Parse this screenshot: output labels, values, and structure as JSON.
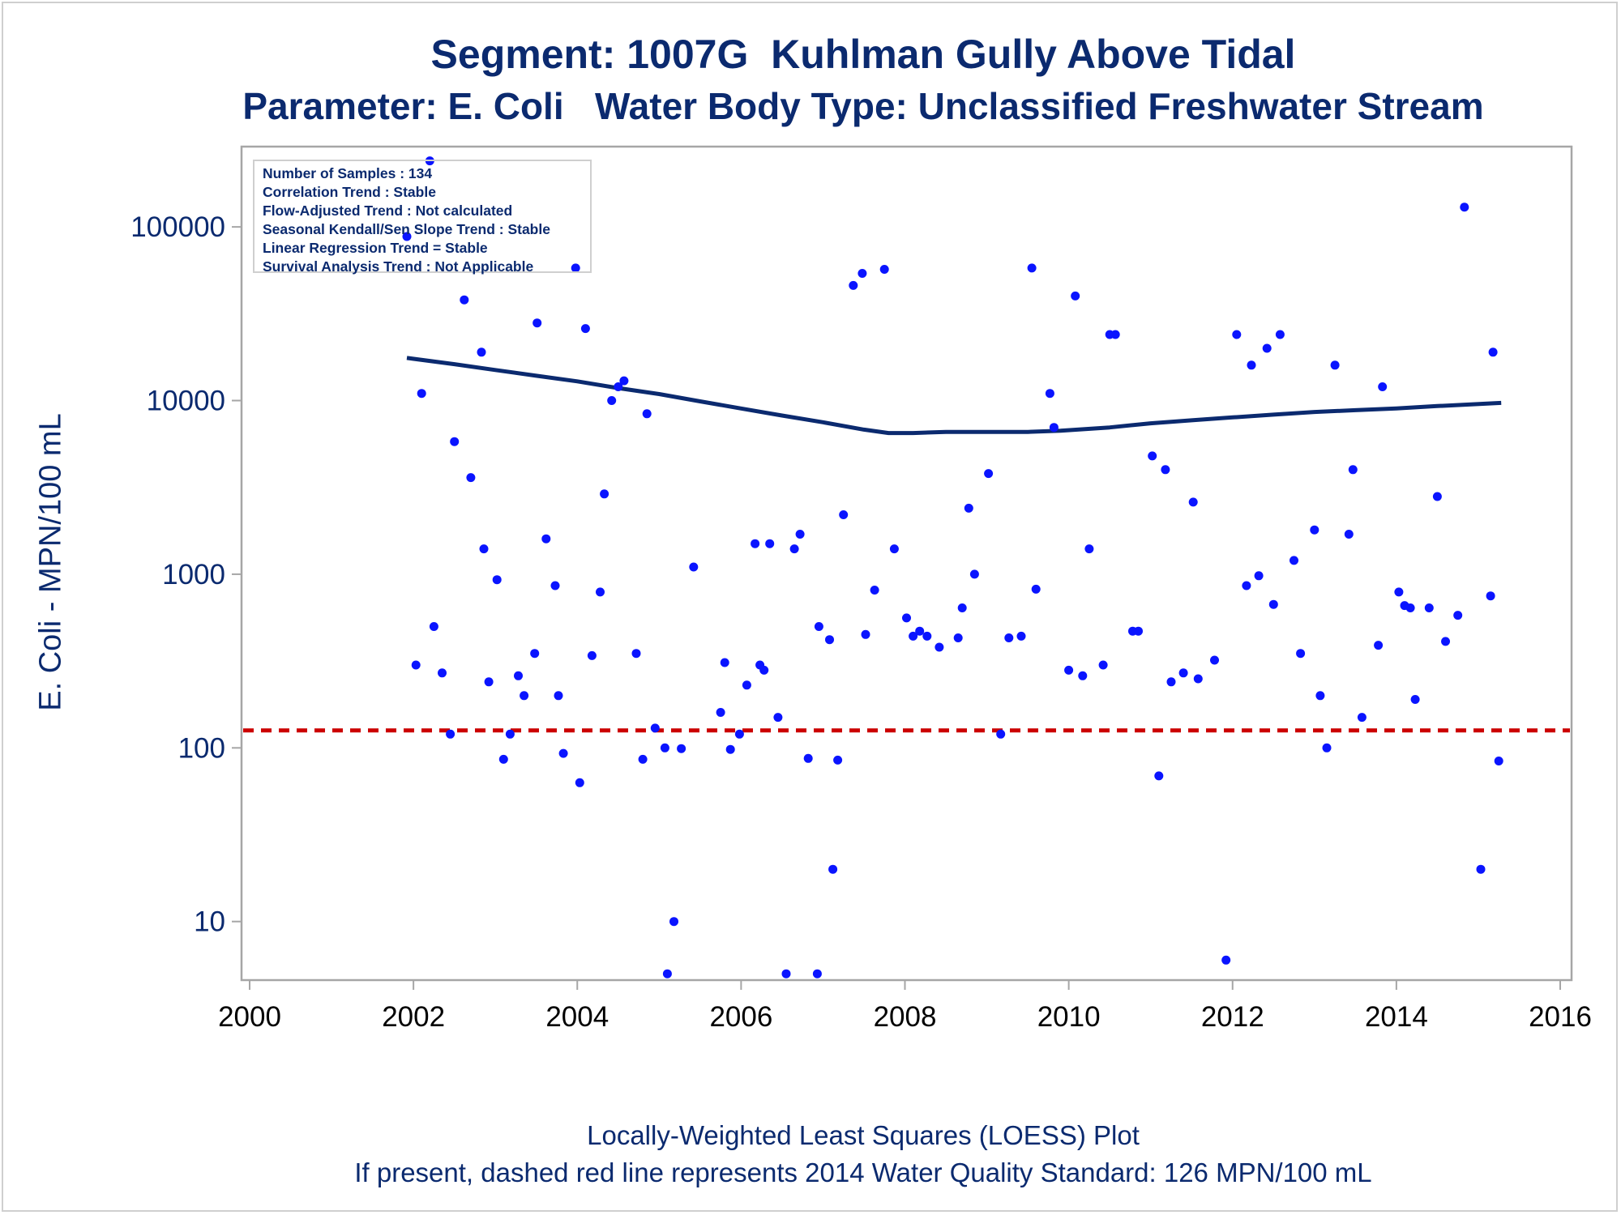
{
  "title_line1": "Segment: 1007G  Kuhlman Gully Above Tidal",
  "title_line2": "Parameter: E. Coli   Water Body Type: Unclassified Freshwater Stream",
  "stats_box": [
    "Number of Samples : 134",
    "Correlation Trend : Stable",
    "Flow-Adjusted Trend : Not calculated",
    "Seasonal Kendall/Sen Slope Trend : Stable",
    "Linear Regression Trend = Stable",
    "Survival Analysis Trend : Not Applicable"
  ],
  "footnote_line1": "Locally-Weighted Least Squares (LOESS) Plot",
  "footnote_line2": "If present, dashed red line represents 2014 Water Quality Standard: 126 MPN/100 mL",
  "colors": {
    "text": "#0b2a6f",
    "points": "#0a14ff",
    "loess": "#0b2a6f",
    "standard": "#cc0000",
    "frame": "#a6a6a6"
  },
  "chart_data": {
    "type": "scatter",
    "ylabel": "E. Coli - MPN/100 mL",
    "xlabel": "",
    "y_scale": "log",
    "xlim": [
      2000,
      2016
    ],
    "ylim": [
      4.6,
      290000
    ],
    "x_ticks": [
      "2000",
      "2002",
      "2004",
      "2006",
      "2008",
      "2010",
      "2012",
      "2014",
      "2016"
    ],
    "y_ticks": [
      "10",
      "100",
      "1000",
      "10000",
      "100000"
    ],
    "grid": false,
    "standard_line": {
      "value": 126,
      "style": "dashed"
    },
    "points": [
      {
        "x": 2001.92,
        "y": 88000
      },
      {
        "x": 2002.03,
        "y": 300
      },
      {
        "x": 2002.1,
        "y": 11000
      },
      {
        "x": 2002.2,
        "y": 240000
      },
      {
        "x": 2002.25,
        "y": 500
      },
      {
        "x": 2002.35,
        "y": 270
      },
      {
        "x": 2002.45,
        "y": 120
      },
      {
        "x": 2002.5,
        "y": 5800
      },
      {
        "x": 2002.62,
        "y": 38000
      },
      {
        "x": 2002.7,
        "y": 3600
      },
      {
        "x": 2002.83,
        "y": 19000
      },
      {
        "x": 2002.86,
        "y": 1400
      },
      {
        "x": 2002.92,
        "y": 240
      },
      {
        "x": 2003.02,
        "y": 930
      },
      {
        "x": 2003.1,
        "y": 86
      },
      {
        "x": 2003.18,
        "y": 120
      },
      {
        "x": 2003.28,
        "y": 260
      },
      {
        "x": 2003.35,
        "y": 200
      },
      {
        "x": 2003.48,
        "y": 350
      },
      {
        "x": 2003.51,
        "y": 28000
      },
      {
        "x": 2003.62,
        "y": 1600
      },
      {
        "x": 2003.73,
        "y": 860
      },
      {
        "x": 2003.77,
        "y": 200
      },
      {
        "x": 2003.83,
        "y": 93
      },
      {
        "x": 2003.98,
        "y": 58000
      },
      {
        "x": 2004.03,
        "y": 63
      },
      {
        "x": 2004.1,
        "y": 26000
      },
      {
        "x": 2004.18,
        "y": 340
      },
      {
        "x": 2004.28,
        "y": 790
      },
      {
        "x": 2004.33,
        "y": 2900
      },
      {
        "x": 2004.42,
        "y": 10000
      },
      {
        "x": 2004.5,
        "y": 12000
      },
      {
        "x": 2004.57,
        "y": 13000
      },
      {
        "x": 2004.72,
        "y": 350
      },
      {
        "x": 2004.8,
        "y": 86
      },
      {
        "x": 2004.85,
        "y": 8400
      },
      {
        "x": 2004.95,
        "y": 130
      },
      {
        "x": 2005.07,
        "y": 100
      },
      {
        "x": 2005.1,
        "y": 5
      },
      {
        "x": 2005.18,
        "y": 10
      },
      {
        "x": 2005.27,
        "y": 99
      },
      {
        "x": 2005.42,
        "y": 1100
      },
      {
        "x": 2005.75,
        "y": 160
      },
      {
        "x": 2005.8,
        "y": 310
      },
      {
        "x": 2005.87,
        "y": 98
      },
      {
        "x": 2005.98,
        "y": 120
      },
      {
        "x": 2006.07,
        "y": 230
      },
      {
        "x": 2006.17,
        "y": 1500
      },
      {
        "x": 2006.23,
        "y": 300
      },
      {
        "x": 2006.28,
        "y": 280
      },
      {
        "x": 2006.35,
        "y": 1500
      },
      {
        "x": 2006.45,
        "y": 150
      },
      {
        "x": 2006.55,
        "y": 5
      },
      {
        "x": 2006.65,
        "y": 1400
      },
      {
        "x": 2006.72,
        "y": 1700
      },
      {
        "x": 2006.82,
        "y": 87
      },
      {
        "x": 2006.93,
        "y": 5
      },
      {
        "x": 2006.95,
        "y": 500
      },
      {
        "x": 2007.08,
        "y": 420
      },
      {
        "x": 2007.12,
        "y": 20
      },
      {
        "x": 2007.18,
        "y": 85
      },
      {
        "x": 2007.25,
        "y": 2200
      },
      {
        "x": 2007.37,
        "y": 46000
      },
      {
        "x": 2007.48,
        "y": 54000
      },
      {
        "x": 2007.52,
        "y": 450
      },
      {
        "x": 2007.63,
        "y": 810
      },
      {
        "x": 2007.75,
        "y": 57000
      },
      {
        "x": 2007.87,
        "y": 1400
      },
      {
        "x": 2008.02,
        "y": 560
      },
      {
        "x": 2008.1,
        "y": 440
      },
      {
        "x": 2008.18,
        "y": 470
      },
      {
        "x": 2008.27,
        "y": 440
      },
      {
        "x": 2008.42,
        "y": 380
      },
      {
        "x": 2008.65,
        "y": 430
      },
      {
        "x": 2008.7,
        "y": 640
      },
      {
        "x": 2008.78,
        "y": 2400
      },
      {
        "x": 2008.85,
        "y": 1000
      },
      {
        "x": 2009.02,
        "y": 3800
      },
      {
        "x": 2009.17,
        "y": 120
      },
      {
        "x": 2009.27,
        "y": 430
      },
      {
        "x": 2009.42,
        "y": 440
      },
      {
        "x": 2009.55,
        "y": 58000
      },
      {
        "x": 2009.6,
        "y": 820
      },
      {
        "x": 2009.77,
        "y": 11000
      },
      {
        "x": 2009.82,
        "y": 7000
      },
      {
        "x": 2010.0,
        "y": 280
      },
      {
        "x": 2010.08,
        "y": 40000
      },
      {
        "x": 2010.17,
        "y": 260
      },
      {
        "x": 2010.25,
        "y": 1400
      },
      {
        "x": 2010.42,
        "y": 300
      },
      {
        "x": 2010.5,
        "y": 24000
      },
      {
        "x": 2010.57,
        "y": 24000
      },
      {
        "x": 2010.78,
        "y": 470
      },
      {
        "x": 2010.85,
        "y": 470
      },
      {
        "x": 2011.02,
        "y": 4800
      },
      {
        "x": 2011.1,
        "y": 69
      },
      {
        "x": 2011.18,
        "y": 4000
      },
      {
        "x": 2011.25,
        "y": 240
      },
      {
        "x": 2011.4,
        "y": 270
      },
      {
        "x": 2011.52,
        "y": 2600
      },
      {
        "x": 2011.58,
        "y": 250
      },
      {
        "x": 2011.78,
        "y": 320
      },
      {
        "x": 2011.92,
        "y": 6
      },
      {
        "x": 2012.05,
        "y": 24000
      },
      {
        "x": 2012.17,
        "y": 860
      },
      {
        "x": 2012.23,
        "y": 16000
      },
      {
        "x": 2012.32,
        "y": 980
      },
      {
        "x": 2012.42,
        "y": 20000
      },
      {
        "x": 2012.5,
        "y": 670
      },
      {
        "x": 2012.58,
        "y": 24000
      },
      {
        "x": 2012.75,
        "y": 1200
      },
      {
        "x": 2012.83,
        "y": 350
      },
      {
        "x": 2013.0,
        "y": 1800
      },
      {
        "x": 2013.07,
        "y": 200
      },
      {
        "x": 2013.15,
        "y": 100
      },
      {
        "x": 2013.25,
        "y": 16000
      },
      {
        "x": 2013.42,
        "y": 1700
      },
      {
        "x": 2013.47,
        "y": 4000
      },
      {
        "x": 2013.58,
        "y": 150
      },
      {
        "x": 2013.78,
        "y": 390
      },
      {
        "x": 2013.83,
        "y": 12000
      },
      {
        "x": 2014.03,
        "y": 790
      },
      {
        "x": 2014.1,
        "y": 660
      },
      {
        "x": 2014.17,
        "y": 640
      },
      {
        "x": 2014.23,
        "y": 190
      },
      {
        "x": 2014.4,
        "y": 640
      },
      {
        "x": 2014.5,
        "y": 2800
      },
      {
        "x": 2014.6,
        "y": 410
      },
      {
        "x": 2014.75,
        "y": 580
      },
      {
        "x": 2014.83,
        "y": 130000
      },
      {
        "x": 2015.03,
        "y": 20
      },
      {
        "x": 2015.15,
        "y": 750
      },
      {
        "x": 2015.18,
        "y": 19000
      },
      {
        "x": 2015.25,
        "y": 84
      }
    ],
    "loess": [
      {
        "x": 2001.92,
        "y": 17600
      },
      {
        "x": 2002.5,
        "y": 16200
      },
      {
        "x": 2003.0,
        "y": 15000
      },
      {
        "x": 2003.5,
        "y": 13900
      },
      {
        "x": 2004.0,
        "y": 12900
      },
      {
        "x": 2004.5,
        "y": 11800
      },
      {
        "x": 2005.0,
        "y": 10900
      },
      {
        "x": 2005.5,
        "y": 9900
      },
      {
        "x": 2006.0,
        "y": 9000
      },
      {
        "x": 2006.5,
        "y": 8200
      },
      {
        "x": 2007.0,
        "y": 7500
      },
      {
        "x": 2007.5,
        "y": 6800
      },
      {
        "x": 2007.8,
        "y": 6500
      },
      {
        "x": 2008.1,
        "y": 6500
      },
      {
        "x": 2008.5,
        "y": 6600
      },
      {
        "x": 2009.0,
        "y": 6600
      },
      {
        "x": 2009.5,
        "y": 6600
      },
      {
        "x": 2009.9,
        "y": 6700
      },
      {
        "x": 2010.5,
        "y": 7000
      },
      {
        "x": 2011.0,
        "y": 7400
      },
      {
        "x": 2011.5,
        "y": 7700
      },
      {
        "x": 2012.0,
        "y": 8000
      },
      {
        "x": 2012.5,
        "y": 8300
      },
      {
        "x": 2013.0,
        "y": 8600
      },
      {
        "x": 2013.5,
        "y": 8800
      },
      {
        "x": 2014.0,
        "y": 9000
      },
      {
        "x": 2014.5,
        "y": 9300
      },
      {
        "x": 2015.28,
        "y": 9700
      }
    ]
  }
}
